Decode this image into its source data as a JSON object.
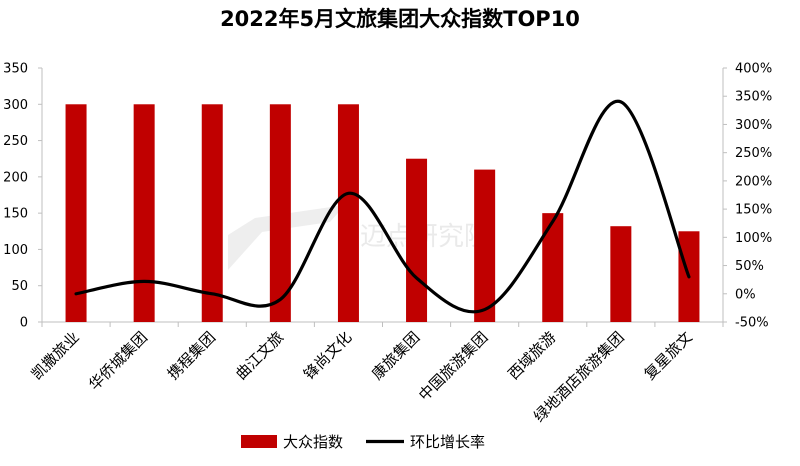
{
  "chart_data": {
    "type": "bar",
    "title": "2022年5月文旅集团大众指数TOP10",
    "categories": [
      "凯撒旅业",
      "华侨城集团",
      "携程集团",
      "曲江文旅",
      "锋尚文化",
      "康旅集团",
      "中国旅游集团",
      "西域旅游",
      "绿地酒店旅游集团",
      "复星旅文"
    ],
    "series": [
      {
        "name": "大众指数",
        "type": "bar",
        "axis": "left",
        "color": "#c00000",
        "values": [
          300,
          300,
          300,
          300,
          300,
          225,
          210,
          150,
          132,
          125
        ]
      },
      {
        "name": "环比增长率",
        "type": "line",
        "axis": "right",
        "color": "#000000",
        "smooth": true,
        "values": [
          0,
          22,
          0,
          -10,
          178,
          28,
          -28,
          128,
          340,
          30
        ]
      }
    ],
    "y_left": {
      "range": [
        0,
        350
      ],
      "ticks": [
        0,
        50,
        100,
        150,
        200,
        250,
        300,
        350
      ]
    },
    "y_right": {
      "range": [
        -50,
        400
      ],
      "unit": "%",
      "ticks": [
        "-50%",
        "0%",
        "50%",
        "100%",
        "150%",
        "200%",
        "250%",
        "300%",
        "350%",
        "400%"
      ],
      "tick_values": [
        -50,
        0,
        50,
        100,
        150,
        200,
        250,
        300,
        350,
        400
      ]
    },
    "grid": false,
    "legend_position": "bottom",
    "watermark": "迈点研究院"
  }
}
